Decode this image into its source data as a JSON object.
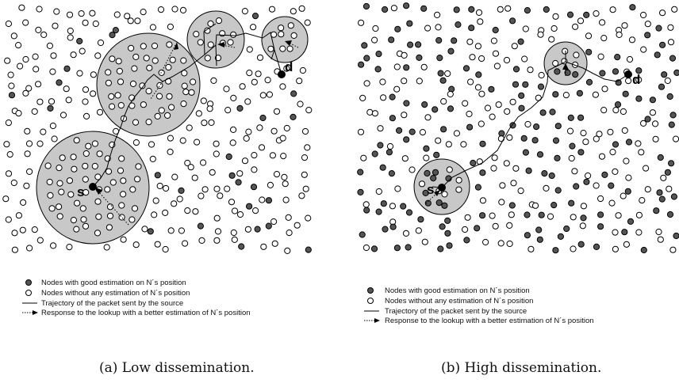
{
  "panels": [
    {
      "id": "a",
      "caption": "(a) Low dissemination.",
      "source_label": "s",
      "destination_label": "d",
      "legend": {
        "good": "Nodes with good estimation on N´s position",
        "none": "Nodes without any estimation of N´s position",
        "trajectory": "Trajectory of the packet sent by the source",
        "response": "Response to the lookup with a better estimation of N´s position"
      }
    },
    {
      "id": "b",
      "caption": "(b) High dissemination.",
      "source_label": "s",
      "destination_label": "d",
      "legend": {
        "good": "Nodes with good estimation on N´s position",
        "none": "Nodes without any estimation of N´s position",
        "trajectory": "Trajectory of the packet sent by the source",
        "response": "Response to the lookup with a better estimation of N´s position"
      }
    }
  ],
  "colors": {
    "good_node": "#555555",
    "empty_node": "#ffffff",
    "endpoint_node": "#000000",
    "lookup_area": "#c8c8c8",
    "stroke": "#000000"
  }
}
